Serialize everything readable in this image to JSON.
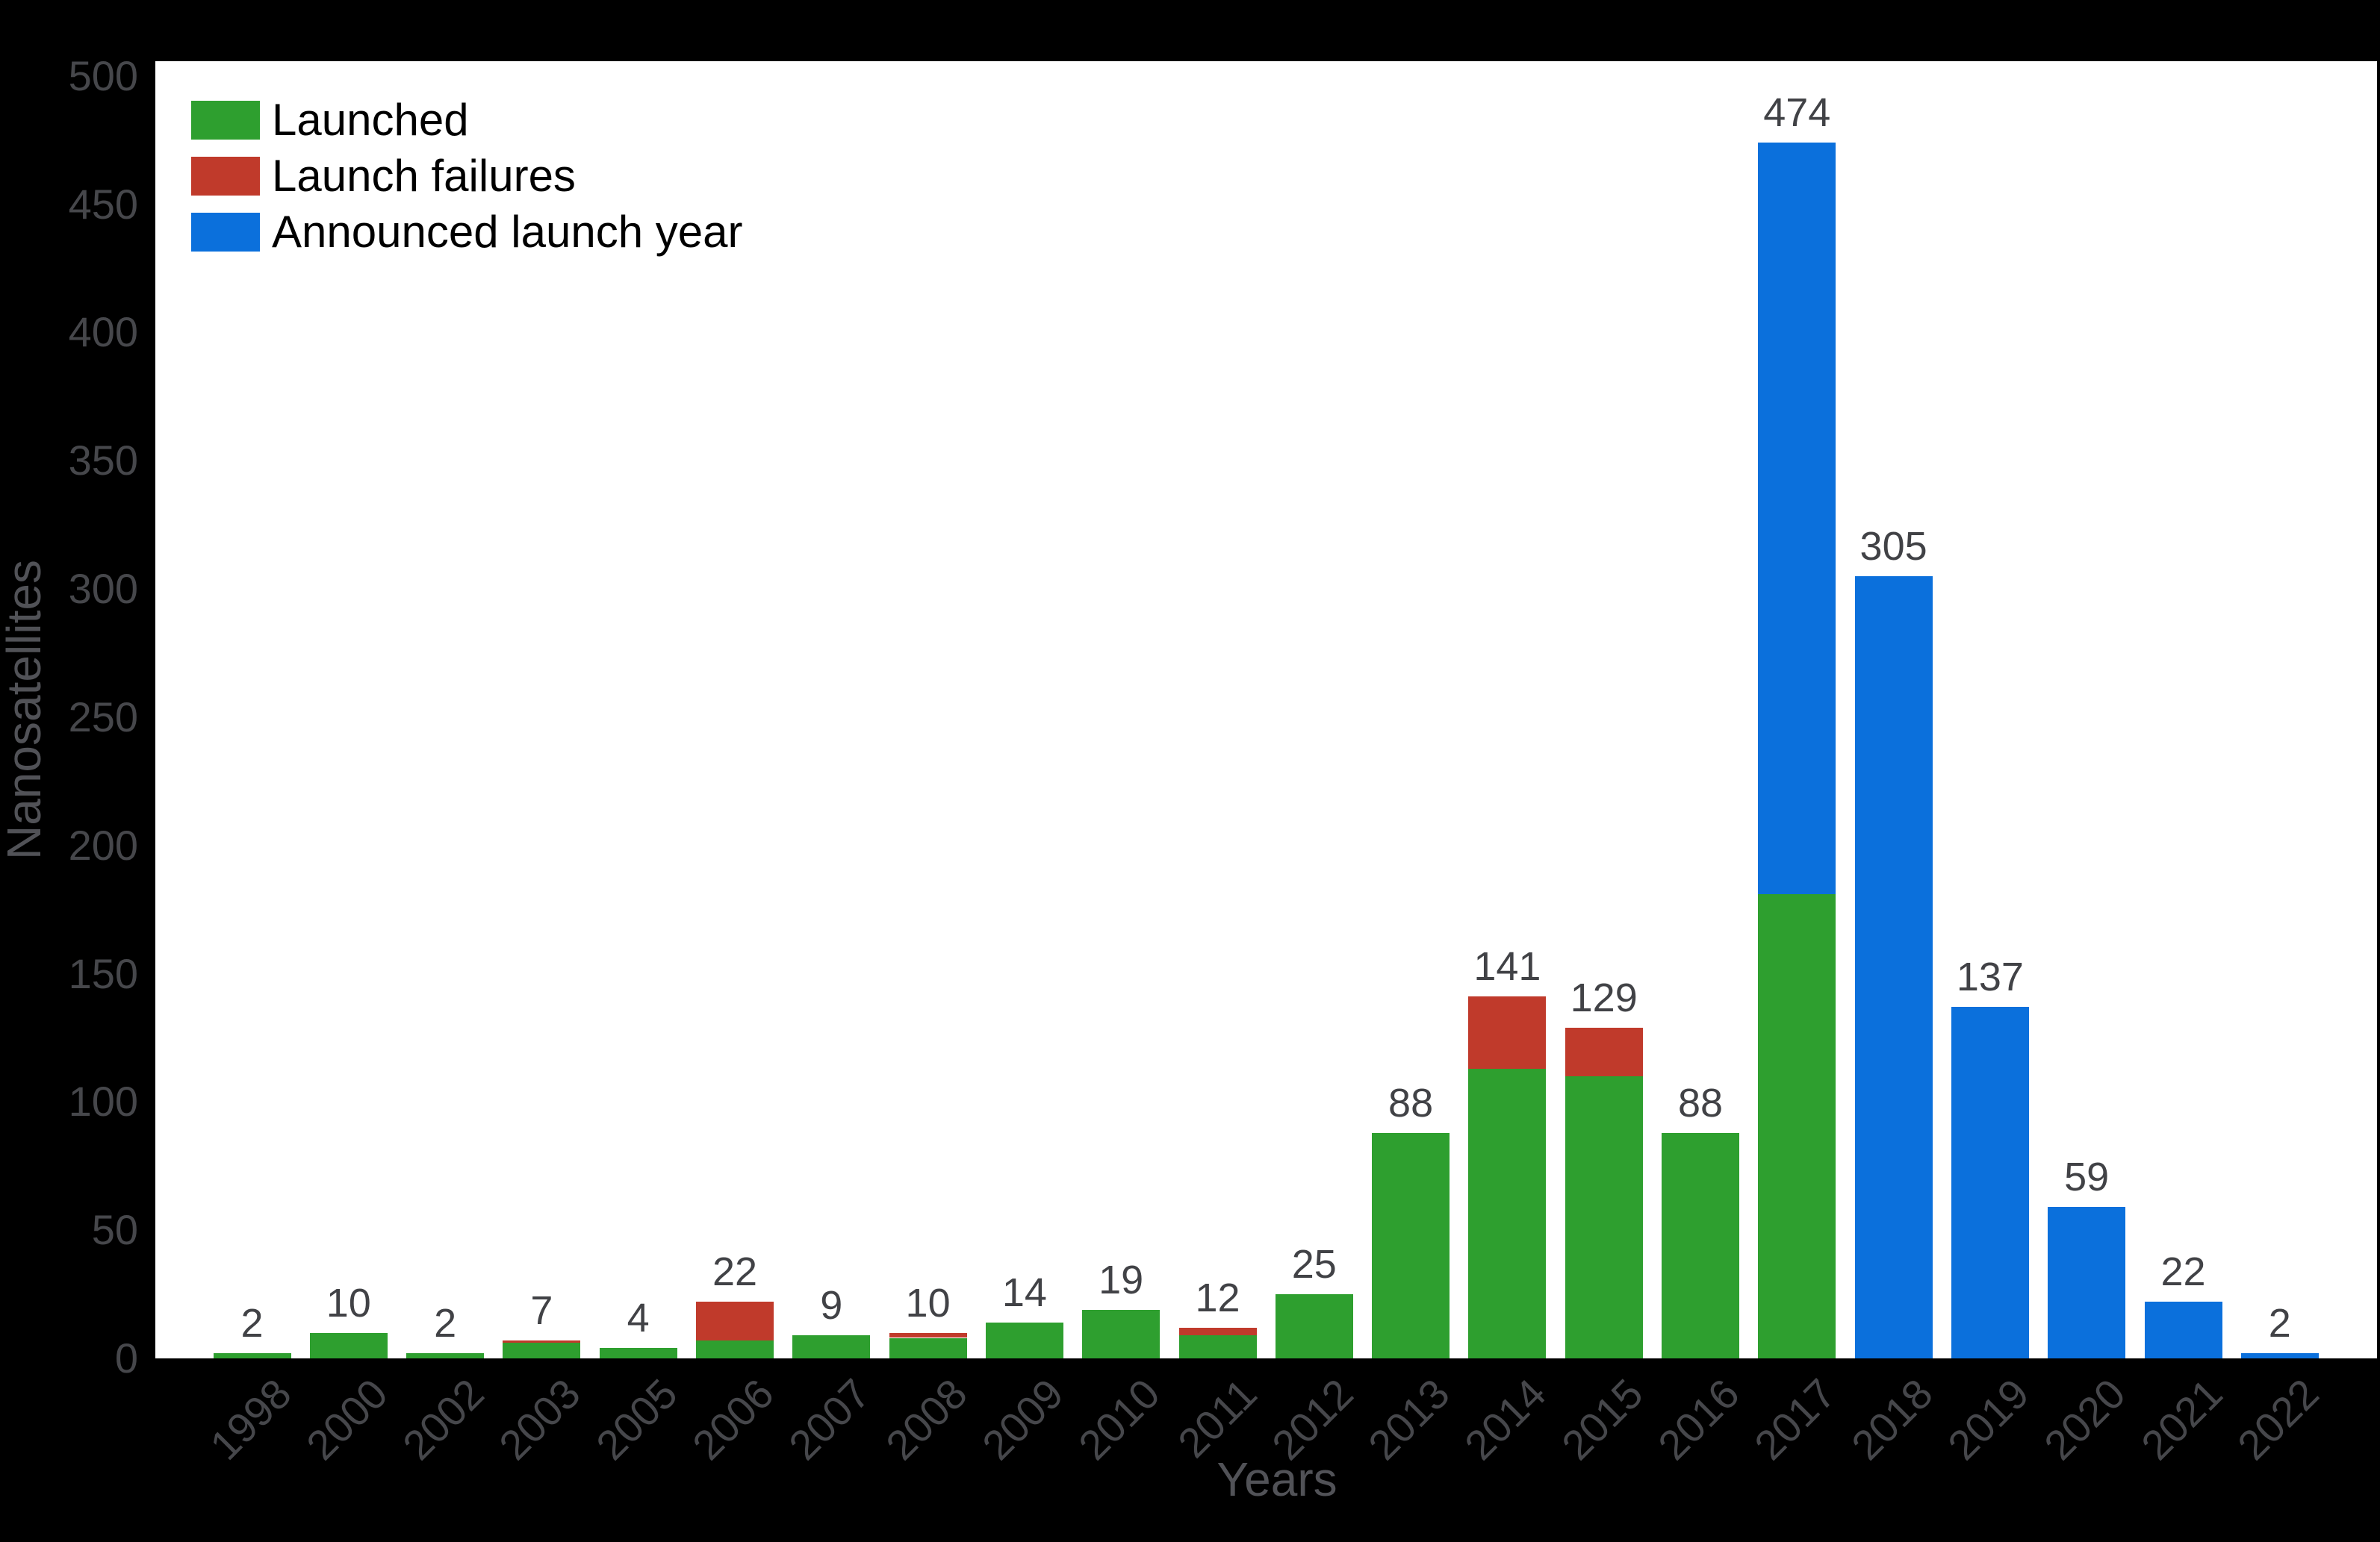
{
  "colors": {
    "background": "#000000",
    "plot_background": "#ffffff",
    "tick_label": "#46474b",
    "value_label": "#414246",
    "axis_title": "#515257",
    "legend_text": "#000000",
    "launched_green": "#2E9F2F",
    "failures_red": "#C03A2B",
    "announced_blue": "#0B70DC"
  },
  "chart_data": {
    "type": "bar",
    "stacked": true,
    "title": "",
    "xlabel": "Years",
    "ylabel": "Nanosatellites",
    "grid": false,
    "legend_position": "top-left",
    "ylim": [
      0,
      500
    ],
    "y_ticks": [
      0,
      50,
      100,
      150,
      200,
      250,
      300,
      350,
      400,
      450,
      500
    ],
    "categories": [
      "1998",
      "2000",
      "2002",
      "2003",
      "2005",
      "2006",
      "2007",
      "2008",
      "2009",
      "2010",
      "2011",
      "2012",
      "2013",
      "2014",
      "2015",
      "2016",
      "2017",
      "2018",
      "2019",
      "2020",
      "2021",
      "2022"
    ],
    "series": [
      {
        "name": "Launched",
        "color": "#2E9F2F",
        "values": [
          2,
          10,
          2,
          6,
          4,
          7,
          9,
          8,
          14,
          19,
          9,
          25,
          88,
          113,
          110,
          88,
          181,
          0,
          0,
          0,
          0,
          0
        ]
      },
      {
        "name": "Launch failures",
        "color": "#C03A2B",
        "values": [
          0,
          0,
          0,
          1,
          0,
          15,
          0,
          2,
          0,
          0,
          3,
          0,
          0,
          28,
          19,
          0,
          0,
          0,
          0,
          0,
          0,
          0
        ]
      },
      {
        "name": "Announced launch year",
        "color": "#0B70DC",
        "values": [
          0,
          0,
          0,
          0,
          0,
          0,
          0,
          0,
          0,
          0,
          0,
          0,
          0,
          0,
          0,
          0,
          293,
          305,
          137,
          59,
          22,
          2
        ]
      }
    ],
    "totals": [
      2,
      10,
      2,
      7,
      4,
      22,
      9,
      10,
      14,
      19,
      12,
      25,
      88,
      141,
      129,
      88,
      474,
      305,
      137,
      59,
      22,
      2
    ]
  }
}
